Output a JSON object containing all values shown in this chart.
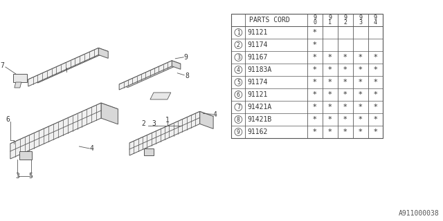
{
  "bg_color": "#ffffff",
  "title_code": "A911000038",
  "table": {
    "header_col": "PARTS CORD",
    "year_cols": [
      "9\n0",
      "9\n1",
      "9\n2",
      "9\n3",
      "9\n4"
    ],
    "rows": [
      {
        "num": 1,
        "part": "91121",
        "years": [
          true,
          false,
          false,
          false,
          false
        ]
      },
      {
        "num": 2,
        "part": "91174",
        "years": [
          true,
          false,
          false,
          false,
          false
        ]
      },
      {
        "num": 3,
        "part": "91167",
        "years": [
          true,
          true,
          true,
          true,
          true
        ]
      },
      {
        "num": 4,
        "part": "91183A",
        "years": [
          true,
          true,
          true,
          true,
          true
        ]
      },
      {
        "num": 5,
        "part": "91174",
        "years": [
          true,
          true,
          true,
          true,
          true
        ]
      },
      {
        "num": 6,
        "part": "91121",
        "years": [
          true,
          true,
          true,
          true,
          true
        ]
      },
      {
        "num": 7,
        "part": "91421A",
        "years": [
          true,
          true,
          true,
          true,
          true
        ]
      },
      {
        "num": 8,
        "part": "91421B",
        "years": [
          true,
          true,
          true,
          true,
          true
        ]
      },
      {
        "num": 9,
        "part": "91162",
        "years": [
          true,
          true,
          true,
          true,
          true
        ]
      }
    ]
  },
  "lc": "#555555",
  "fc": "#f5f5f5",
  "font_size_table": 7,
  "font_size_label": 6.5,
  "font_size_code": 7
}
